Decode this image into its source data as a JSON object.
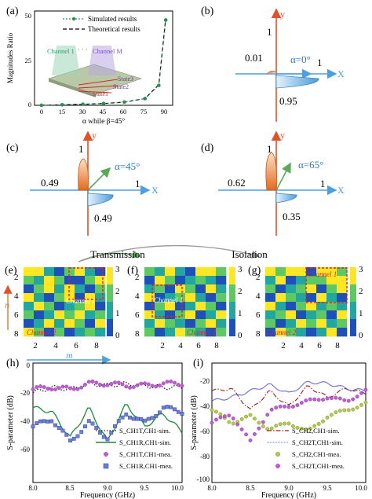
{
  "panel_labels": {
    "a": "(a)",
    "b": "(b)",
    "c": "(c)",
    "d": "(d)",
    "e": "(e)",
    "f": "(f)",
    "g": "(g)",
    "h": "(h)",
    "i": "(i)"
  },
  "panel_a": {
    "legend": [
      "Simulated results",
      "Theoretical results"
    ],
    "ylabel": "Magnitudes Ratio",
    "xlabel": "α while β=45°",
    "xticks": [
      "0",
      "15",
      "30",
      "45",
      "60",
      "75",
      "90"
    ],
    "yticks": [
      "0",
      "25",
      "50"
    ],
    "inset": {
      "channel1": "Channel 1",
      "channelM": "Channel M",
      "dots": "· · ·",
      "state1": "State1",
      "state2": "State2",
      "state3": "State3"
    }
  },
  "diagrams": {
    "b": {
      "alpha": "α=0°",
      "one_x": "1",
      "one_y": "1",
      "small": "0.01",
      "big": "0.95",
      "x": "X",
      "y": "y"
    },
    "c": {
      "alpha": "α=45°",
      "one_x": "1",
      "one_y": "1",
      "top": "0.49",
      "bottom": "0.49",
      "x": "X",
      "y": "y"
    },
    "d": {
      "alpha": "α=65°",
      "one_x": "1",
      "one_y": "1",
      "top": "0.62",
      "bottom": "0.35",
      "x": "X",
      "y": "y"
    }
  },
  "transmission_label": "Transmission",
  "isolation_label": "Isolation",
  "heatmaps": {
    "yticks": [
      "2",
      "4",
      "6",
      "8"
    ],
    "xticks": [
      "2",
      "4",
      "6",
      "8"
    ],
    "colorbar_ticks": [
      "3",
      "2",
      "1",
      "0"
    ],
    "n_label": "n",
    "m_label": "m",
    "e_labels": {
      "c1": "Channel 1",
      "c2": "Channel 2"
    },
    "f_labels": {
      "c1": "Channel 1",
      "c2": "Channel 2"
    },
    "g_labels": {
      "c1": "Channel 1",
      "c2": "Channel 2"
    }
  },
  "panel_h": {
    "ylabel": "S-parameter (dB)",
    "xlabel": "Frequency (GHz)",
    "yticks": [
      "0",
      "-20",
      "-40",
      "-60"
    ],
    "xticks": [
      "8.0",
      "8.5",
      "9.0",
      "9.5",
      "10.0"
    ],
    "legend": [
      "S_CH1T,CH1-sim.",
      "S_CH1R,CH1-sim.",
      "S_CH1T,CH1-mea.",
      "S_CH1R,CH1-mea."
    ]
  },
  "panel_i": {
    "ylabel": "S-parameter (dB)",
    "xlabel": "Frequency (GHz)",
    "yticks": [
      "-20",
      "-40",
      "-60",
      "-80",
      "-100"
    ],
    "xticks": [
      "8.0",
      "8.5",
      "9.0",
      "9.5",
      "10.0"
    ],
    "legend": [
      "S_CH2,CH1-sim.",
      "S_CH2T,CH1-sim.",
      "S_CH2,CH1-mea.",
      "S_CH2T,CH1-mea."
    ]
  },
  "colors": {
    "viridis_dark": "#3b4cc0",
    "viridis_blue": "#1f78c8",
    "teal": "#24a6a0",
    "yellow": "#fde725",
    "green": "#5ec962"
  },
  "chart_data": [
    {
      "type": "line",
      "id": "a",
      "x": [
        0,
        15,
        30,
        45,
        60,
        75,
        85,
        90
      ],
      "series": [
        {
          "name": "Simulated results",
          "values": [
            0.01,
            0.3,
            0.6,
            1.0,
            1.8,
            3.7,
            11,
            47
          ]
        },
        {
          "name": "Theoretical results",
          "values": [
            0,
            0.27,
            0.58,
            1.0,
            1.73,
            3.73,
            11.4,
            48
          ]
        }
      ],
      "xlim": [
        -5,
        95
      ],
      "ylim": [
        0,
        52
      ]
    },
    {
      "type": "heatmap",
      "id": "e",
      "grid": [
        [
          3,
          3,
          1,
          0,
          2,
          3,
          1,
          0
        ],
        [
          2,
          1,
          3,
          2,
          0,
          0,
          2,
          3
        ],
        [
          0,
          2,
          3,
          1,
          3,
          1,
          0,
          2
        ],
        [
          3,
          1,
          0,
          2,
          3,
          0,
          3,
          1
        ],
        [
          1,
          3,
          2,
          0,
          1,
          2,
          3,
          0
        ],
        [
          2,
          0,
          1,
          3,
          2,
          3,
          1,
          2
        ],
        [
          0,
          1,
          3,
          1,
          3,
          2,
          0,
          3
        ],
        [
          3,
          2,
          0,
          2,
          0,
          1,
          2,
          1
        ]
      ]
    },
    {
      "type": "heatmap",
      "id": "f",
      "grid": [
        [
          2,
          1,
          3,
          1,
          0,
          3,
          3,
          2
        ],
        [
          0,
          3,
          2,
          0,
          1,
          2,
          1,
          0
        ],
        [
          1,
          2,
          0,
          3,
          2,
          0,
          3,
          1
        ],
        [
          3,
          0,
          1,
          2,
          3,
          1,
          0,
          2
        ],
        [
          0,
          2,
          3,
          0,
          1,
          3,
          2,
          0
        ],
        [
          3,
          1,
          0,
          2,
          3,
          0,
          1,
          3
        ],
        [
          1,
          3,
          2,
          1,
          0,
          2,
          3,
          1
        ],
        [
          2,
          0,
          1,
          3,
          2,
          1,
          0,
          2
        ]
      ]
    },
    {
      "type": "heatmap",
      "id": "g",
      "grid": [
        [
          3,
          2,
          3,
          3,
          0,
          3,
          3,
          2
        ],
        [
          1,
          3,
          0,
          1,
          2,
          2,
          3,
          3
        ],
        [
          2,
          0,
          1,
          2,
          3,
          0,
          2,
          3
        ],
        [
          0,
          3,
          2,
          1,
          0,
          3,
          1,
          0
        ],
        [
          3,
          1,
          0,
          2,
          3,
          1,
          2,
          1
        ],
        [
          1,
          2,
          3,
          0,
          1,
          2,
          0,
          3
        ],
        [
          2,
          0,
          1,
          3,
          2,
          3,
          1,
          2
        ],
        [
          0,
          3,
          2,
          1,
          0,
          1,
          3,
          0
        ]
      ]
    },
    {
      "type": "line",
      "id": "h",
      "x": [
        8.0,
        8.25,
        8.5,
        8.75,
        9.0,
        9.25,
        9.5,
        9.75,
        10.0
      ],
      "series": [
        {
          "name": "S_CH1T,CH1-sim.",
          "values": [
            -14,
            -11,
            -12,
            -9,
            -10,
            -9,
            -10,
            -11,
            -11
          ]
        },
        {
          "name": "S_CH1R,CH1-sim.",
          "values": [
            -22,
            -24,
            -38,
            -22,
            -40,
            -20,
            -32,
            -25,
            -35
          ]
        },
        {
          "name": "S_CH1T,CH1-mea.",
          "values": [
            -12,
            -11,
            -12,
            -9,
            -9,
            -10,
            -10,
            -9,
            -9
          ]
        },
        {
          "name": "S_CH1R,CH1-mea.",
          "values": [
            -32,
            -28,
            -40,
            -30,
            -38,
            -25,
            -30,
            -22,
            -24
          ]
        }
      ],
      "ylim": [
        -62,
        2
      ],
      "xlim": [
        8.0,
        10.0
      ]
    },
    {
      "type": "line",
      "id": "i",
      "x": [
        8.0,
        8.25,
        8.5,
        8.75,
        9.0,
        9.25,
        9.5,
        9.75,
        10.0
      ],
      "series": [
        {
          "name": "S_CH2,CH1-sim.",
          "values": [
            -30,
            -28,
            -45,
            -30,
            -42,
            -26,
            -35,
            -28,
            -32
          ]
        },
        {
          "name": "S_CH2T,CH1-sim.",
          "values": [
            -38,
            -35,
            -30,
            -25,
            -32,
            -23,
            -24,
            -28,
            -30
          ]
        },
        {
          "name": "S_CH2,CH1-mea.",
          "values": [
            -45,
            -55,
            -50,
            -60,
            -55,
            -62,
            -50,
            -45,
            -40
          ]
        },
        {
          "name": "S_CH2T,CH1-mea.",
          "values": [
            -55,
            -48,
            -70,
            -45,
            -42,
            -38,
            -35,
            -38,
            -30
          ]
        }
      ],
      "ylim": [
        -102,
        -8
      ],
      "xlim": [
        8.0,
        10.0
      ]
    }
  ]
}
